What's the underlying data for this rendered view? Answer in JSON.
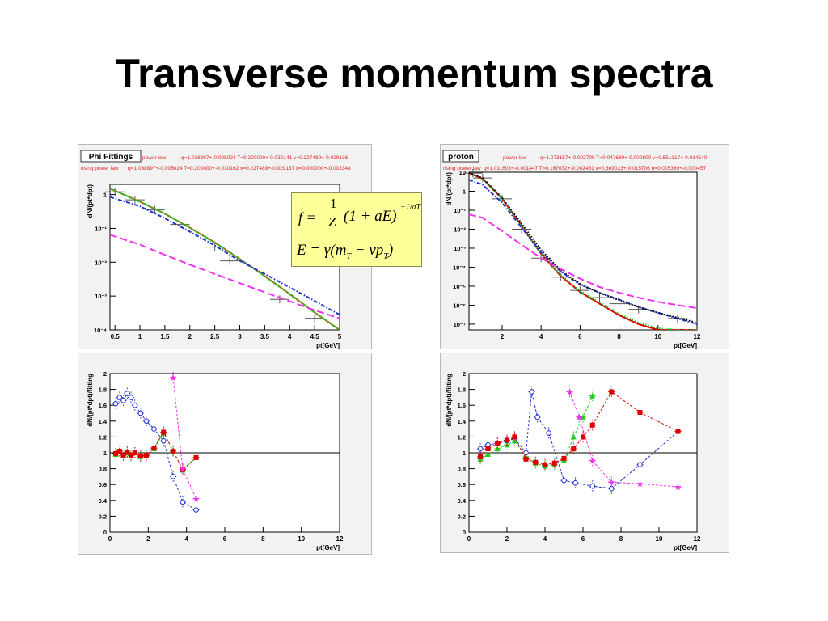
{
  "title": "Transverse momentum spectra",
  "colors": {
    "black": "#000000",
    "green": "#22cc22",
    "red": "#dd0000",
    "blue": "#2233cc",
    "magenta": "#ee33ee",
    "olive": "#8a7a1a",
    "fit_header": "#dd2222",
    "formula_bg": "#ffff99"
  },
  "formula": {
    "line1_lhs": "f =",
    "line1_numer": "1",
    "line1_denom": "Z",
    "line1_body": "(1 + aE)",
    "line1_exp": "−1/aT",
    "line2": "E = γ(m",
    "line2_sub1": "T",
    "line2_mid": " − vp",
    "line2_sub2": "T",
    "line2_end": ")"
  },
  "chart_data": [
    {
      "type": "line",
      "panel_label": "Phi Fittings",
      "fit_row1_label": "power law",
      "fit_row1_params": "q=1.038897+-0.005024 T=0.200000+-0.030141 v=0.227489+-0.029136",
      "fit_row2_label": "rising power law",
      "fit_row2_params": "q=1.038897+-0.005024 T=0.200000+-0.030162 v=0.227489+-0.029137 b=0.000000+-0.002348",
      "xlabel": "pt[GeV]",
      "ylabel": "dN/(pt*dpt)",
      "xlim": [
        0.4,
        5
      ],
      "ylim": [
        0.0001,
        2
      ],
      "yscale": "log",
      "xticks": [
        "0.5",
        "1",
        "1.5",
        "2",
        "2.5",
        "3",
        "3.5",
        "4",
        "4.5",
        "5"
      ],
      "xtick_values": [
        0.5,
        1,
        1.5,
        2,
        2.5,
        3,
        3.5,
        4,
        4.5,
        5
      ],
      "yticks": [
        "1",
        "10⁻¹",
        "10⁻²",
        "10⁻³",
        "10⁻⁴"
      ],
      "ytick_values": [
        1,
        0.1,
        0.01,
        0.001,
        0.0001
      ],
      "data_points": {
        "x": [
          0.5,
          0.9,
          1.3,
          1.8,
          2.5,
          2.8,
          3.8,
          4.5
        ],
        "y": [
          1.2,
          0.7,
          0.35,
          0.13,
          0.028,
          0.011,
          0.0008,
          0.00022
        ]
      },
      "series": [
        {
          "color": "olive",
          "style": "solid",
          "x": [
            0.4,
            1,
            1.5,
            2,
            2.5,
            3,
            3.5,
            4,
            4.5,
            5
          ],
          "y": [
            1.5,
            0.62,
            0.27,
            0.105,
            0.038,
            0.0125,
            0.0039,
            0.00115,
            0.00033,
            0.0001
          ]
        },
        {
          "color": "green",
          "style": "dotted",
          "x": [
            0.4,
            1,
            1.5,
            2,
            2.5,
            3,
            3.5,
            4,
            4.5,
            5
          ],
          "y": [
            1.5,
            0.61,
            0.27,
            0.104,
            0.037,
            0.0123,
            0.0038,
            0.00112,
            0.00032,
            0.0001
          ]
        },
        {
          "color": "blue",
          "style": "dashdot",
          "x": [
            0.4,
            1,
            1.5,
            2,
            2.5,
            3,
            3.5,
            4,
            4.5,
            5
          ],
          "y": [
            0.85,
            0.45,
            0.2,
            0.08,
            0.031,
            0.011,
            0.0045,
            0.0018,
            0.00072,
            0.00028
          ]
        },
        {
          "color": "magenta",
          "style": "dashed",
          "x": [
            0.4,
            1,
            1.5,
            2,
            2.5,
            3,
            3.5,
            4,
            4.5,
            5
          ],
          "y": [
            0.065,
            0.033,
            0.0165,
            0.0085,
            0.0045,
            0.0024,
            0.0013,
            0.0007,
            0.00038,
            0.00022
          ]
        }
      ]
    },
    {
      "type": "line",
      "panel_label": "proton",
      "fit_row1_label": "power law",
      "fit_row1_params": "q=1.073157+-0.002709 T=0.047639+-0.000800 v=0.551317+-0.014540",
      "fit_row2_label": "rising power law",
      "fit_row2_params": "q=1.011603+-0.001447 T=0.167672+-0.002451 v=0.369023+-0.015706 b=0.005389+-0.000457",
      "xlabel": "pt[GeV]",
      "ylabel": "dN/(pt*dpt)",
      "xlim": [
        0.3,
        12
      ],
      "ylim": [
        5e-08,
        10
      ],
      "yscale": "log",
      "xticks": [
        "2",
        "4",
        "6",
        "8",
        "10",
        "12"
      ],
      "xtick_values": [
        2,
        4,
        6,
        8,
        10,
        12
      ],
      "yticks": [
        "10",
        "1",
        "10⁻¹",
        "10⁻²",
        "10⁻³",
        "10⁻⁴",
        "10⁻⁵",
        "10⁻⁶",
        "10⁻⁷"
      ],
      "ytick_values": [
        10,
        1,
        0.1,
        0.01,
        0.001,
        0.0001,
        1e-05,
        1e-06,
        1e-07
      ],
      "data_points": {
        "x": [
          0.5,
          1,
          2,
          3,
          4,
          5,
          6,
          7,
          8,
          9,
          11
        ],
        "y": [
          9,
          5,
          0.4,
          0.01,
          0.0003,
          3e-05,
          6e-06,
          2.5e-06,
          1.2e-06,
          6e-07,
          2e-07
        ]
      },
      "series": [
        {
          "color": "red",
          "style": "solid",
          "x": [
            0.3,
            1,
            2,
            3,
            4,
            5,
            6,
            7,
            8,
            9,
            10,
            11,
            12
          ],
          "y": [
            9,
            4.5,
            0.4,
            0.015,
            0.0005,
            3.5e-05,
            5e-06,
            1.2e-06,
            3e-07,
            1e-07,
            5e-08,
            5e-08,
            5e-08
          ]
        },
        {
          "color": "green",
          "style": "dotted",
          "x": [
            0.3,
            1,
            2,
            3,
            4,
            5,
            6,
            7,
            8,
            9,
            10,
            11,
            12
          ],
          "y": [
            9,
            4.5,
            0.4,
            0.015,
            0.0005,
            4e-05,
            5.5e-06,
            1.4e-06,
            3.5e-07,
            1.2e-07,
            6e-08,
            5e-08,
            5e-08
          ]
        },
        {
          "color": "blue",
          "style": "dashdot",
          "x": [
            0.3,
            1,
            2,
            3,
            4,
            5,
            6,
            7,
            8,
            9,
            10,
            11,
            12
          ],
          "y": [
            4,
            2.2,
            0.25,
            0.012,
            0.0006,
            6e-05,
            1.2e-05,
            4.5e-06,
            2e-06,
            8e-07,
            4e-07,
            2e-07,
            1e-07
          ]
        },
        {
          "color": "black",
          "style": "dotted",
          "x": [
            0.3,
            1,
            2,
            3,
            4,
            5,
            6,
            7,
            8,
            9,
            10,
            11,
            12
          ],
          "y": [
            9,
            5,
            0.45,
            0.02,
            0.0008,
            7e-05,
            1.3e-05,
            4.5e-06,
            1.8e-06,
            8e-07,
            4e-07,
            2.2e-07,
            1.2e-07
          ]
        },
        {
          "color": "magenta",
          "style": "dashed",
          "x": [
            0.3,
            1,
            2,
            3,
            4,
            5,
            6,
            7,
            8,
            9,
            10,
            11,
            12
          ],
          "y": [
            0.06,
            0.04,
            0.008,
            0.0015,
            0.0003,
            8e-05,
            2.5e-05,
            9e-06,
            4.5e-06,
            2.5e-06,
            1.5e-06,
            1e-06,
            7e-07
          ]
        }
      ]
    },
    {
      "type": "scatter",
      "xlabel": "pt[GeV]",
      "ylabel": "dN/(pt*dpt)/fitting",
      "xlim": [
        0,
        12
      ],
      "ylim": [
        0,
        2
      ],
      "xticks": [
        "0",
        "2",
        "4",
        "6",
        "8",
        "10",
        "12"
      ],
      "xtick_values": [
        0,
        2,
        4,
        6,
        8,
        10,
        12
      ],
      "yticks": [
        "0",
        "0.2",
        "0.4",
        "0.6",
        "0.8",
        "1",
        "1.2",
        "1.4",
        "1.6",
        "1.8",
        "2"
      ],
      "ytick_values": [
        0,
        0.2,
        0.4,
        0.6,
        0.8,
        1,
        1.2,
        1.4,
        1.6,
        1.8,
        2
      ],
      "reference_line": 1,
      "series": [
        {
          "color": "blue",
          "marker": "open-circle",
          "x": [
            0.3,
            0.5,
            0.7,
            0.9,
            1.1,
            1.3,
            1.6,
            1.9,
            2.3,
            2.8,
            3.3,
            3.8,
            4.5
          ],
          "y": [
            1.62,
            1.7,
            1.66,
            1.75,
            1.7,
            1.6,
            1.5,
            1.4,
            1.3,
            1.15,
            0.7,
            0.38,
            0.28
          ]
        },
        {
          "color": "green",
          "marker": "triangle",
          "x": [
            0.3,
            0.5,
            0.7,
            0.9,
            1.1,
            1.3,
            1.6,
            1.9,
            2.3,
            2.8,
            3.3,
            3.8,
            4.5
          ],
          "y": [
            0.98,
            1.02,
            0.97,
            1.0,
            0.96,
            1.0,
            0.95,
            0.96,
            1.05,
            1.25,
            1.03,
            0.78,
            0.94
          ]
        },
        {
          "color": "red",
          "marker": "filled-square",
          "x": [
            0.3,
            0.5,
            0.7,
            0.9,
            1.1,
            1.3,
            1.6,
            1.9,
            2.3,
            2.8,
            3.3,
            3.8,
            4.5
          ],
          "y": [
            0.99,
            1.02,
            0.97,
            1.01,
            0.97,
            1.0,
            0.96,
            0.97,
            1.06,
            1.26,
            1.02,
            0.79,
            0.94
          ]
        },
        {
          "color": "magenta",
          "marker": "star",
          "x": [
            3.3,
            3.8,
            4.5
          ],
          "y": [
            1.95,
            0.8,
            0.42
          ]
        }
      ]
    },
    {
      "type": "scatter",
      "xlabel": "pt[GeV]",
      "ylabel": "dN/(pt*dpt)/fitting",
      "xlim": [
        0,
        12
      ],
      "ylim": [
        0,
        2
      ],
      "xticks": [
        "0",
        "2",
        "4",
        "6",
        "8",
        "10",
        "12"
      ],
      "xtick_values": [
        0,
        2,
        4,
        6,
        8,
        10,
        12
      ],
      "yticks": [
        "0",
        "0.2",
        "0.4",
        "0.6",
        "0.8",
        "1",
        "1.2",
        "1.4",
        "1.6",
        "1.8",
        "2"
      ],
      "ytick_values": [
        0,
        0.2,
        0.4,
        0.6,
        0.8,
        1,
        1.2,
        1.4,
        1.6,
        1.8,
        2
      ],
      "reference_line": 1,
      "series": [
        {
          "color": "blue",
          "marker": "open-circle",
          "x": [
            0.6,
            1,
            1.5,
            2,
            2.4,
            3.0,
            3.3,
            3.6,
            4.2,
            5.0,
            5.6,
            6.5,
            7.5,
            9.0,
            11
          ],
          "y": [
            1.05,
            1.1,
            1.12,
            1.15,
            1.18,
            1.0,
            1.77,
            1.45,
            1.25,
            0.65,
            0.62,
            0.58,
            0.55,
            0.85,
            1.27
          ]
        },
        {
          "color": "green",
          "marker": "triangle",
          "x": [
            0.6,
            1,
            1.5,
            2,
            2.4,
            3.0,
            3.5,
            4.0,
            4.5,
            5.0,
            5.5,
            6.0,
            6.5
          ],
          "y": [
            0.92,
            0.98,
            1.05,
            1.1,
            1.15,
            0.95,
            0.87,
            0.83,
            0.85,
            0.9,
            1.2,
            1.45,
            1.72
          ]
        },
        {
          "color": "red",
          "marker": "filled-square",
          "x": [
            0.6,
            1,
            1.5,
            2,
            2.4,
            3.0,
            3.5,
            4.0,
            4.5,
            5.0,
            5.5,
            6.0,
            6.5,
            7.5,
            9.0,
            11
          ],
          "y": [
            0.95,
            1.05,
            1.12,
            1.16,
            1.2,
            0.92,
            0.88,
            0.85,
            0.87,
            0.93,
            1.05,
            1.2,
            1.35,
            1.77,
            1.51,
            1.27
          ]
        },
        {
          "color": "magenta",
          "marker": "star",
          "x": [
            5.3,
            5.8,
            6.5,
            7.5,
            9.0,
            11
          ],
          "y": [
            1.77,
            1.45,
            0.9,
            0.63,
            0.61,
            0.57
          ]
        }
      ]
    }
  ]
}
